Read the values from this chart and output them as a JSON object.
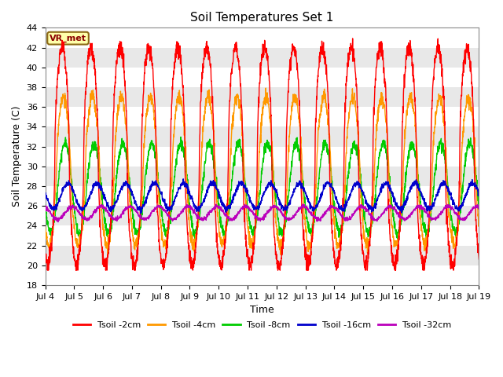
{
  "title": "Soil Temperatures Set 1",
  "xlabel": "Time",
  "ylabel": "Soil Temperature (C)",
  "ylim": [
    18,
    44
  ],
  "yticks": [
    18,
    20,
    22,
    24,
    26,
    28,
    30,
    32,
    34,
    36,
    38,
    40,
    42,
    44
  ],
  "xtick_labels": [
    "Jul 4",
    "Jul 5",
    "Jul 6",
    "Jul 7",
    "Jul 8",
    "Jul 9",
    "Jul 10",
    "Jul 11",
    "Jul 12",
    "Jul 13",
    "Jul 14",
    "Jul 15",
    "Jul 16",
    "Jul 17",
    "Jul 18",
    "Jul 19"
  ],
  "station_label": "VR_met",
  "colors": {
    "Tsoil -2cm": "#ff0000",
    "Tsoil -4cm": "#ff9900",
    "Tsoil -8cm": "#00cc00",
    "Tsoil -16cm": "#0000cc",
    "Tsoil -32cm": "#bb00bb"
  },
  "background_color": "#ffffff",
  "band_colors": [
    "#ffffff",
    "#e8e8e8"
  ],
  "n_points": 2160,
  "days": 15
}
